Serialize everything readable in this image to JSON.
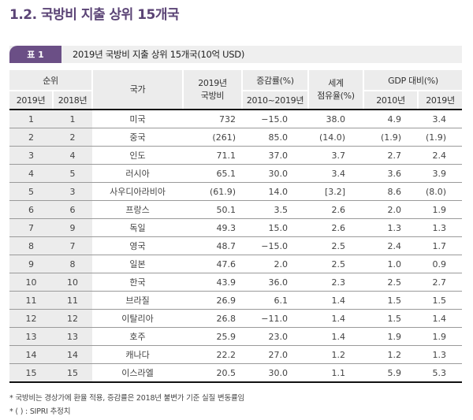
{
  "page": {
    "title": "1.2. 국방비 지출 상위 15개국"
  },
  "caption": {
    "tag": "표 1",
    "text": "2019년 국방비 지출 상위 15개국(10억 USD)"
  },
  "table": {
    "headers": {
      "rank_group": "순위",
      "rank_2019": "2019년",
      "rank_2018": "2018년",
      "country": "국가",
      "spending_line1": "2019년",
      "spending_line2": "국방비",
      "change_group": "증감률(%)",
      "change_period": "2010~2019년",
      "share_line1": "세계",
      "share_line2": "점유율(%)",
      "gdp_group": "GDP 대비(%)",
      "gdp_2010": "2010년",
      "gdp_2019": "2019년"
    },
    "rows": [
      {
        "rank_2019": "1",
        "rank_2018": "1",
        "country": "미국",
        "spending": "732",
        "change": "−15.0",
        "share": "38.0",
        "gdp_2010": "4.9",
        "gdp_2019": "3.4"
      },
      {
        "rank_2019": "2",
        "rank_2018": "2",
        "country": "중국",
        "spending": "(261)",
        "change": "85.0",
        "share": "(14.0)",
        "gdp_2010": "(1.9)",
        "gdp_2019": "(1.9)"
      },
      {
        "rank_2019": "3",
        "rank_2018": "4",
        "country": "인도",
        "spending": "71.1",
        "change": "37.0",
        "share": "3.7",
        "gdp_2010": "2.7",
        "gdp_2019": "2.4"
      },
      {
        "rank_2019": "4",
        "rank_2018": "5",
        "country": "러시아",
        "spending": "65.1",
        "change": "30.0",
        "share": "3.4",
        "gdp_2010": "3.6",
        "gdp_2019": "3.9"
      },
      {
        "rank_2019": "5",
        "rank_2018": "3",
        "country": "사우디아라비아",
        "spending": "(61.9)",
        "change": "14.0",
        "share": "[3.2]",
        "gdp_2010": "8.6",
        "gdp_2019": "(8.0)"
      },
      {
        "rank_2019": "6",
        "rank_2018": "6",
        "country": "프랑스",
        "spending": "50.1",
        "change": "3.5",
        "share": "2.6",
        "gdp_2010": "2.0",
        "gdp_2019": "1.9"
      },
      {
        "rank_2019": "7",
        "rank_2018": "9",
        "country": "독일",
        "spending": "49.3",
        "change": "15.0",
        "share": "2.6",
        "gdp_2010": "1.3",
        "gdp_2019": "1.3"
      },
      {
        "rank_2019": "8",
        "rank_2018": "7",
        "country": "영국",
        "spending": "48.7",
        "change": "−15.0",
        "share": "2.5",
        "gdp_2010": "2.4",
        "gdp_2019": "1.7"
      },
      {
        "rank_2019": "9",
        "rank_2018": "8",
        "country": "일본",
        "spending": "47.6",
        "change": "2.0",
        "share": "2.5",
        "gdp_2010": "1.0",
        "gdp_2019": "0.9"
      },
      {
        "rank_2019": "10",
        "rank_2018": "10",
        "country": "한국",
        "spending": "43.9",
        "change": "36.0",
        "share": "2.3",
        "gdp_2010": "2.5",
        "gdp_2019": "2.7"
      },
      {
        "rank_2019": "11",
        "rank_2018": "11",
        "country": "브라질",
        "spending": "26.9",
        "change": "6.1",
        "share": "1.4",
        "gdp_2010": "1.5",
        "gdp_2019": "1.5"
      },
      {
        "rank_2019": "12",
        "rank_2018": "12",
        "country": "이탈리아",
        "spending": "26.8",
        "change": "−11.0",
        "share": "1.4",
        "gdp_2010": "1.5",
        "gdp_2019": "1.4"
      },
      {
        "rank_2019": "13",
        "rank_2018": "13",
        "country": "호주",
        "spending": "25.9",
        "change": "23.0",
        "share": "1.4",
        "gdp_2010": "1.9",
        "gdp_2019": "1.9"
      },
      {
        "rank_2019": "14",
        "rank_2018": "14",
        "country": "캐나다",
        "spending": "22.2",
        "change": "27.0",
        "share": "1.2",
        "gdp_2010": "1.2",
        "gdp_2019": "1.3"
      },
      {
        "rank_2019": "15",
        "rank_2018": "15",
        "country": "이스라엘",
        "spending": "20.5",
        "change": "30.0",
        "share": "1.1",
        "gdp_2010": "5.9",
        "gdp_2019": "5.3"
      }
    ]
  },
  "notes": [
    "* 국방비는 경상가에 환율 적용, 증감률은 2018년 불변가 기준 실질 변동률임",
    "* ( ) : SIPRI 추정치"
  ],
  "colors": {
    "accent_purple": "#6b4f86",
    "title_purple": "#5b4476",
    "header_gray": "#ececec"
  }
}
